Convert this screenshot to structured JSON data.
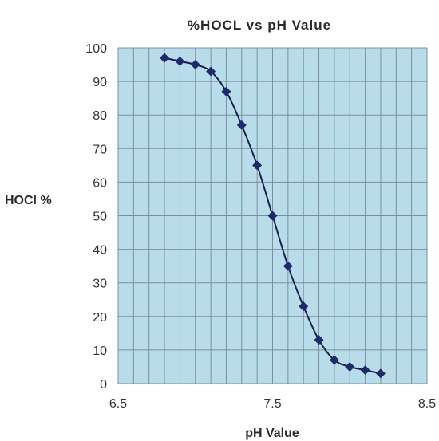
{
  "chart_data": {
    "type": "scatter",
    "title": "%HOCL vs pH Value",
    "xlabel": "pH Value",
    "ylabel": "HOCl %",
    "xlim": [
      6.5,
      8.5
    ],
    "ylim": [
      0,
      100
    ],
    "xticks": [
      "6.5",
      "7.5",
      "8.5"
    ],
    "yticks": [
      "100",
      "90",
      "80",
      "70",
      "60",
      "50",
      "40",
      "30",
      "20",
      "10",
      "0"
    ],
    "grid": true,
    "series": [
      {
        "x": [
          6.8,
          6.9,
          7.0,
          7.1,
          7.2,
          7.3,
          7.4,
          7.5,
          7.6,
          7.7,
          7.8,
          7.9,
          8.0,
          8.1,
          8.2
        ],
        "y": [
          97,
          96,
          95,
          93,
          87,
          77,
          65,
          50,
          35,
          23,
          13,
          7,
          5,
          4,
          3
        ]
      }
    ],
    "colors": {
      "plot_background": "#b8dcea",
      "grid": "#7d8f9b",
      "line": "#1a1f4a",
      "marker": "#1f2a6b"
    }
  }
}
